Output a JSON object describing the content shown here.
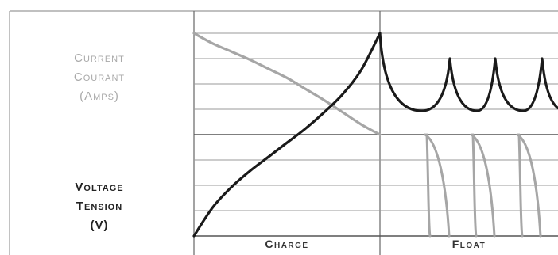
{
  "labels": {
    "current": [
      "Current",
      "Courant",
      "(Amps)"
    ],
    "voltage": [
      "Voltage",
      "Tension",
      "(V)"
    ]
  },
  "phases": [
    {
      "name": "Charge"
    },
    {
      "name": "Float"
    }
  ],
  "colors": {
    "voltage_curve": "#1a1a1a",
    "current_curve": "#a6a6a6",
    "grid": "#9a9a9a",
    "current_text": "#a9a9a9",
    "voltage_text": "#222222"
  },
  "chart_data": {
    "type": "line",
    "x": [
      0,
      0.1,
      0.2,
      0.3,
      0.4,
      0.5,
      0.6,
      0.7,
      0.8,
      0.9,
      1.0
    ],
    "series": [
      {
        "values": [
          0.0,
          0.14,
          0.24,
          0.32,
          0.39,
          0.46,
          0.53,
          0.61,
          0.7,
          0.82,
          1.0
        ]
      },
      {
        "values": [
          1.0,
          0.9,
          0.82,
          0.74,
          0.65,
          0.56,
          0.45,
          0.34,
          0.22,
          0.1,
          0.0
        ]
      }
    ],
    "float_pulses": 4,
    "grid": true
  }
}
